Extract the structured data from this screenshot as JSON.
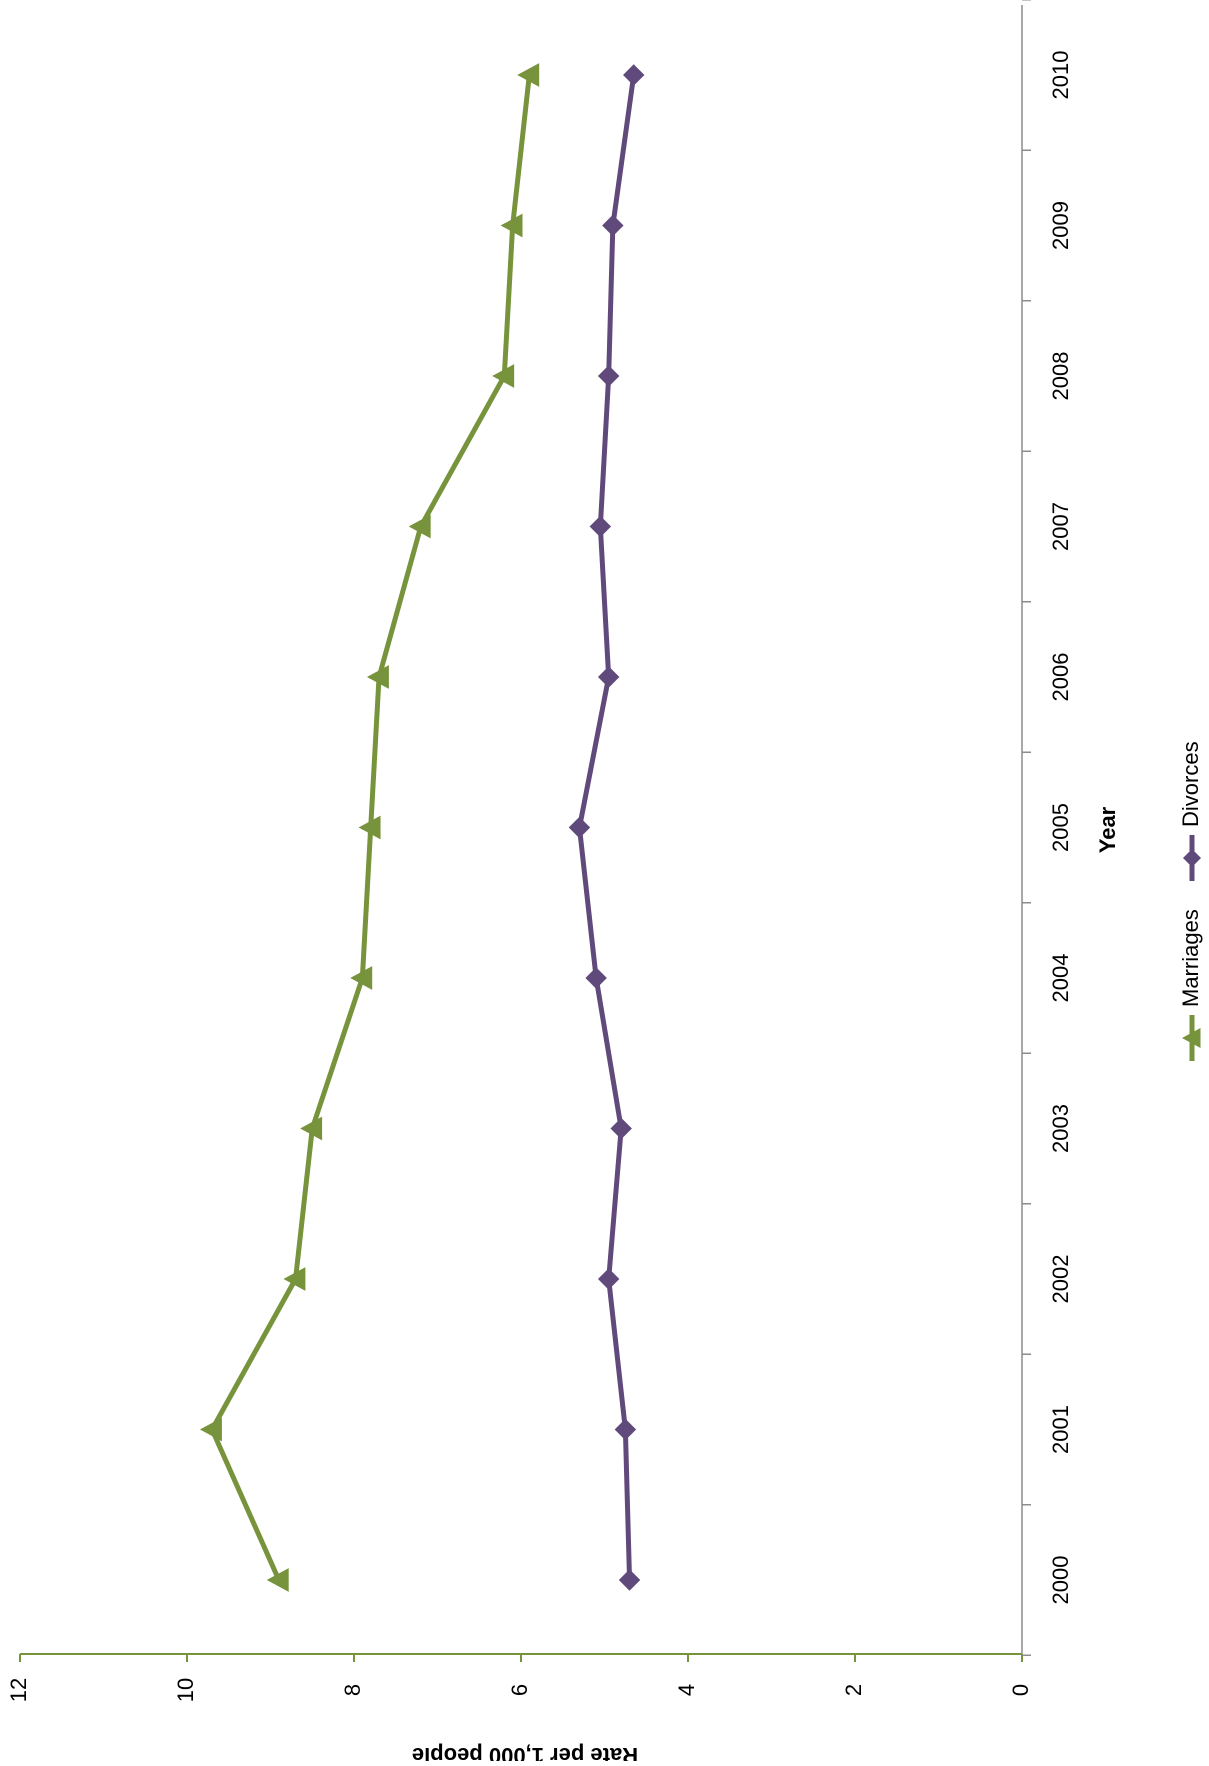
{
  "chart_data": {
    "type": "line",
    "orientation": "rotated-90-clockwise",
    "title": "",
    "xlabel": "Year",
    "ylabel": "Rate per 1,000 people",
    "categories": [
      "2000",
      "2001",
      "2002",
      "2003",
      "2004",
      "2005",
      "2006",
      "2007",
      "2008",
      "2009",
      "2010"
    ],
    "y_ticks": [
      "0",
      "2",
      "4",
      "6",
      "8",
      "10",
      "12"
    ],
    "ylim": [
      0,
      12
    ],
    "grid": false,
    "legend_position": "bottom",
    "series": [
      {
        "name": "Marriages",
        "color": "#77933c",
        "marker": "triangle",
        "values": [
          8.9,
          9.7,
          8.7,
          8.5,
          7.9,
          7.8,
          7.7,
          7.2,
          6.2,
          6.1,
          5.9
        ]
      },
      {
        "name": "Divorces",
        "color": "#604a7b",
        "marker": "diamond",
        "values": [
          4.7,
          4.75,
          4.95,
          4.8,
          5.1,
          5.3,
          4.95,
          5.05,
          4.95,
          4.9,
          4.65
        ]
      }
    ]
  }
}
